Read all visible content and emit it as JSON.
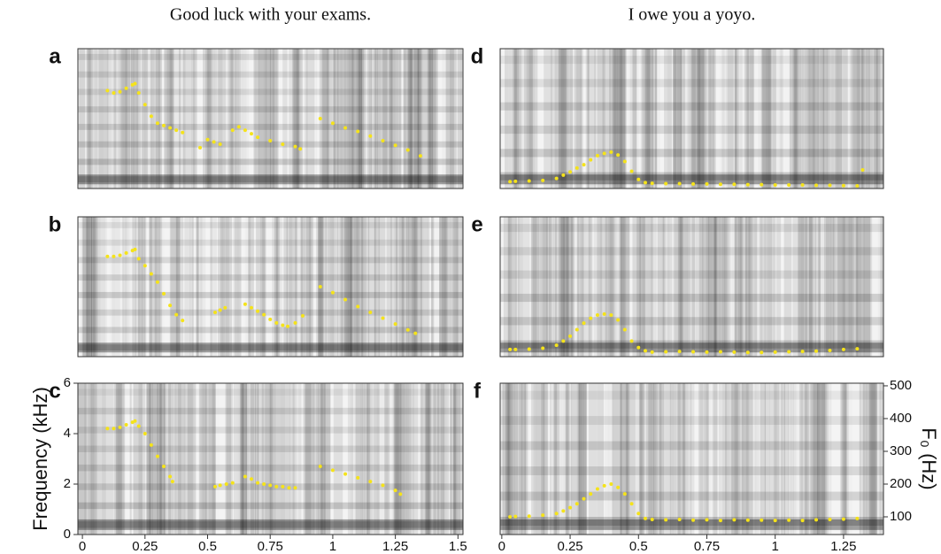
{
  "chart_data": [
    {
      "type": "scatter",
      "label": "a",
      "title": "Good luck with your exams.",
      "xlim": [
        -0.018,
        1.52
      ],
      "ylim": [
        0,
        6
      ],
      "series": [
        {
          "color": "#f5e31a",
          "x": [
            0.1,
            0.125,
            0.15,
            0.175,
            0.2,
            0.21,
            0.225,
            0.25,
            0.275,
            0.3,
            0.325,
            0.35,
            0.375,
            0.4,
            0.47,
            0.5,
            0.525,
            0.55,
            0.6,
            0.625,
            0.65,
            0.675,
            0.7,
            0.75,
            0.8,
            0.85,
            0.87,
            0.95,
            1.0,
            1.05,
            1.1,
            1.15,
            1.2,
            1.25,
            1.3,
            1.35
          ],
          "values": [
            4.2,
            4.1,
            4.15,
            4.3,
            4.45,
            4.5,
            4.1,
            3.6,
            3.1,
            2.8,
            2.7,
            2.6,
            2.5,
            2.4,
            1.75,
            2.1,
            2.0,
            1.9,
            2.5,
            2.65,
            2.5,
            2.35,
            2.2,
            2.05,
            1.9,
            1.8,
            1.7,
            3.0,
            2.8,
            2.6,
            2.45,
            2.25,
            2.05,
            1.85,
            1.65,
            1.4
          ]
        }
      ]
    },
    {
      "type": "scatter",
      "label": "b",
      "xlim": [
        -0.018,
        1.52
      ],
      "ylim": [
        0,
        6
      ],
      "series": [
        {
          "color": "#f5e31a",
          "x": [
            0.1,
            0.125,
            0.15,
            0.175,
            0.2,
            0.21,
            0.225,
            0.25,
            0.275,
            0.3,
            0.325,
            0.35,
            0.375,
            0.4,
            0.53,
            0.55,
            0.57,
            0.65,
            0.675,
            0.7,
            0.725,
            0.75,
            0.775,
            0.8,
            0.82,
            0.85,
            0.88,
            0.95,
            1.0,
            1.05,
            1.1,
            1.15,
            1.2,
            1.25,
            1.3,
            1.33
          ],
          "values": [
            4.3,
            4.3,
            4.35,
            4.45,
            4.55,
            4.6,
            4.2,
            3.9,
            3.55,
            3.2,
            2.7,
            2.2,
            1.8,
            1.55,
            1.9,
            2.0,
            2.1,
            2.25,
            2.1,
            1.95,
            1.8,
            1.6,
            1.45,
            1.35,
            1.3,
            1.45,
            1.75,
            3.0,
            2.75,
            2.45,
            2.15,
            1.9,
            1.65,
            1.4,
            1.15,
            1.0
          ]
        }
      ]
    },
    {
      "type": "scatter",
      "label": "c",
      "ylabel": "Frequency (kHz)",
      "xlim": [
        -0.018,
        1.52
      ],
      "ylim": [
        0,
        6
      ],
      "xticks": [
        0,
        0.25,
        0.5,
        0.75,
        1,
        1.25,
        1.5
      ],
      "yticks": [
        0,
        2,
        4,
        6
      ],
      "series": [
        {
          "color": "#f5e31a",
          "x": [
            0.1,
            0.125,
            0.15,
            0.175,
            0.2,
            0.21,
            0.225,
            0.25,
            0.275,
            0.3,
            0.325,
            0.35,
            0.36,
            0.53,
            0.55,
            0.575,
            0.6,
            0.65,
            0.675,
            0.7,
            0.725,
            0.75,
            0.775,
            0.8,
            0.825,
            0.85,
            0.95,
            1.0,
            1.05,
            1.1,
            1.15,
            1.2,
            1.25,
            1.27
          ],
          "values": [
            4.2,
            4.2,
            4.25,
            4.35,
            4.45,
            4.5,
            4.3,
            4.0,
            3.55,
            3.1,
            2.7,
            2.3,
            2.1,
            1.9,
            1.95,
            2.0,
            2.05,
            2.3,
            2.2,
            2.05,
            2.0,
            1.95,
            1.9,
            1.9,
            1.85,
            1.85,
            2.7,
            2.55,
            2.4,
            2.25,
            2.1,
            1.95,
            1.75,
            1.6
          ]
        }
      ]
    },
    {
      "type": "scatter",
      "label": "d",
      "title": "I owe you a yoyo.",
      "xlim": [
        -0.006,
        1.396
      ],
      "y2lim": [
        77,
        507
      ],
      "series": [
        {
          "color": "#f5e31a",
          "axis": "y2",
          "x": [
            0.03,
            0.05,
            0.1,
            0.15,
            0.2,
            0.225,
            0.25,
            0.275,
            0.3,
            0.325,
            0.35,
            0.375,
            0.4,
            0.425,
            0.45,
            0.475,
            0.5,
            0.525,
            0.55,
            0.6,
            0.65,
            0.7,
            0.75,
            0.8,
            0.85,
            0.9,
            0.95,
            1.0,
            1.05,
            1.1,
            1.15,
            1.2,
            1.25,
            1.3,
            1.32
          ],
          "values": [
            98,
            99,
            100,
            102,
            108,
            118,
            128,
            140,
            150,
            165,
            178,
            185,
            189,
            180,
            160,
            130,
            105,
            95,
            93,
            92,
            92,
            91,
            91,
            90,
            90,
            89,
            89,
            88,
            88,
            88,
            87,
            87,
            86,
            85,
            134
          ]
        }
      ]
    },
    {
      "type": "scatter",
      "label": "e",
      "xlim": [
        -0.006,
        1.396
      ],
      "y2lim": [
        77,
        507
      ],
      "series": [
        {
          "color": "#f5e31a",
          "axis": "y2",
          "x": [
            0.03,
            0.05,
            0.1,
            0.15,
            0.2,
            0.225,
            0.25,
            0.275,
            0.3,
            0.325,
            0.35,
            0.375,
            0.4,
            0.425,
            0.45,
            0.475,
            0.5,
            0.525,
            0.55,
            0.6,
            0.65,
            0.7,
            0.75,
            0.8,
            0.85,
            0.9,
            0.95,
            1.0,
            1.05,
            1.1,
            1.15,
            1.2,
            1.25,
            1.3
          ],
          "values": [
            99,
            99,
            100,
            103,
            112,
            125,
            140,
            160,
            180,
            195,
            205,
            208,
            205,
            190,
            160,
            125,
            105,
            95,
            91,
            92,
            93,
            92,
            91,
            92,
            91,
            90,
            90,
            91,
            92,
            93,
            94,
            96,
            99,
            101
          ]
        }
      ]
    },
    {
      "type": "scatter",
      "label": "f",
      "y2label": "F₀ (Hz)",
      "xlim": [
        -0.006,
        1.396
      ],
      "y2lim": [
        46,
        508
      ],
      "xticks": [
        0,
        0.25,
        0.5,
        0.75,
        1,
        1.25
      ],
      "y2ticks": [
        100,
        200,
        300,
        400,
        500
      ],
      "series": [
        {
          "color": "#f5e31a",
          "axis": "y2",
          "x": [
            0.03,
            0.05,
            0.1,
            0.15,
            0.2,
            0.225,
            0.25,
            0.275,
            0.3,
            0.325,
            0.35,
            0.375,
            0.4,
            0.425,
            0.45,
            0.475,
            0.5,
            0.525,
            0.55,
            0.6,
            0.65,
            0.7,
            0.75,
            0.8,
            0.85,
            0.9,
            0.95,
            1.0,
            1.05,
            1.1,
            1.15,
            1.2,
            1.25,
            1.3
          ],
          "values": [
            100,
            101,
            102,
            105,
            110,
            118,
            128,
            140,
            155,
            170,
            185,
            195,
            200,
            190,
            170,
            140,
            110,
            95,
            92,
            91,
            92,
            90,
            91,
            89,
            91,
            90,
            90,
            89,
            90,
            89,
            91,
            92,
            93,
            95
          ]
        }
      ]
    }
  ]
}
